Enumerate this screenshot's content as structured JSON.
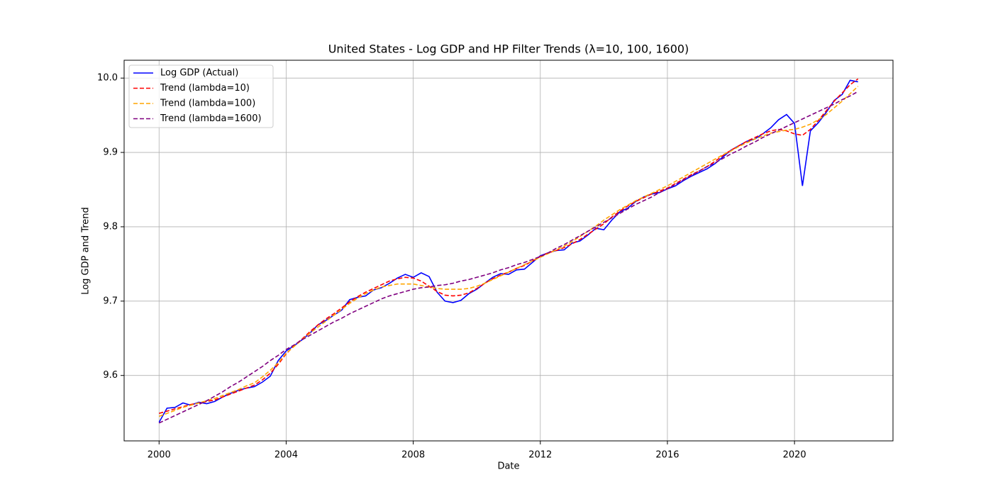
{
  "chart_data": {
    "type": "line",
    "title": "United States - Log GDP and HP Filter Trends (λ=10, 100, 1600)",
    "xlabel": "Date",
    "ylabel": "Log GDP and Trend",
    "x": [
      2000,
      2000.25,
      2000.5,
      2000.75,
      2001,
      2001.25,
      2001.5,
      2001.75,
      2002,
      2002.25,
      2002.5,
      2002.75,
      2003,
      2003.25,
      2003.5,
      2003.75,
      2004,
      2004.25,
      2004.5,
      2004.75,
      2005,
      2005.25,
      2005.5,
      2005.75,
      2006,
      2006.25,
      2006.5,
      2006.75,
      2007,
      2007.25,
      2007.5,
      2007.75,
      2008,
      2008.25,
      2008.5,
      2008.75,
      2009,
      2009.25,
      2009.5,
      2009.75,
      2010,
      2010.25,
      2010.5,
      2010.75,
      2011,
      2011.25,
      2011.5,
      2011.75,
      2012,
      2012.25,
      2012.5,
      2012.75,
      2013,
      2013.25,
      2013.5,
      2013.75,
      2014,
      2014.25,
      2014.5,
      2014.75,
      2015,
      2015.25,
      2015.5,
      2015.75,
      2016,
      2016.25,
      2016.5,
      2016.75,
      2017,
      2017.25,
      2017.5,
      2017.75,
      2018,
      2018.25,
      2018.5,
      2018.75,
      2019,
      2019.25,
      2019.5,
      2019.75,
      2020,
      2020.25,
      2020.5,
      2020.75,
      2021,
      2021.25,
      2021.5,
      2021.75,
      2022
    ],
    "series": [
      {
        "name": "Log GDP (Actual)",
        "color": "#0000ff",
        "dash": false,
        "values": [
          9.537,
          9.556,
          9.557,
          9.563,
          9.56,
          9.564,
          9.562,
          9.565,
          9.571,
          9.576,
          9.58,
          9.583,
          9.585,
          9.591,
          9.599,
          9.62,
          9.633,
          9.64,
          9.648,
          9.657,
          9.668,
          9.674,
          9.681,
          9.688,
          9.702,
          9.705,
          9.707,
          9.715,
          9.718,
          9.724,
          9.731,
          9.736,
          9.732,
          9.738,
          9.733,
          9.712,
          9.7,
          9.698,
          9.701,
          9.71,
          9.716,
          9.724,
          9.732,
          9.737,
          9.736,
          9.742,
          9.743,
          9.752,
          9.761,
          9.765,
          9.768,
          9.769,
          9.778,
          9.781,
          9.789,
          9.798,
          9.796,
          9.809,
          9.82,
          9.825,
          9.834,
          9.84,
          9.844,
          9.846,
          9.851,
          9.855,
          9.862,
          9.868,
          9.873,
          9.878,
          9.885,
          9.894,
          9.903,
          9.909,
          9.915,
          9.918,
          9.925,
          9.933,
          9.944,
          9.951,
          9.939,
          9.855,
          9.929,
          9.94,
          9.954,
          9.97,
          9.978,
          9.997,
          9.995
        ]
      },
      {
        "name": "Trend (lambda=10)",
        "color": "#ff0000",
        "dash": true,
        "values": [
          9.549,
          9.552,
          9.555,
          9.558,
          9.561,
          9.563,
          9.565,
          9.567,
          9.571,
          9.575,
          9.579,
          9.583,
          9.587,
          9.594,
          9.603,
          9.615,
          9.629,
          9.64,
          9.649,
          9.659,
          9.668,
          9.676,
          9.683,
          9.691,
          9.699,
          9.706,
          9.712,
          9.717,
          9.722,
          9.727,
          9.73,
          9.732,
          9.731,
          9.727,
          9.72,
          9.713,
          9.708,
          9.707,
          9.708,
          9.711,
          9.717,
          9.724,
          9.73,
          9.735,
          9.739,
          9.744,
          9.748,
          9.754,
          9.76,
          9.765,
          9.768,
          9.772,
          9.777,
          9.783,
          9.79,
          9.797,
          9.804,
          9.813,
          9.821,
          9.828,
          9.834,
          9.839,
          9.844,
          9.848,
          9.852,
          9.858,
          9.864,
          9.87,
          9.875,
          9.881,
          9.888,
          9.896,
          9.903,
          9.909,
          9.915,
          9.92,
          9.925,
          9.929,
          9.931,
          9.929,
          9.925,
          9.923,
          9.931,
          9.943,
          9.956,
          9.969,
          9.98,
          9.991,
          9.999
        ]
      },
      {
        "name": "Trend (lambda=100)",
        "color": "#ffa500",
        "dash": true,
        "values": [
          9.545,
          9.549,
          9.553,
          9.557,
          9.56,
          9.563,
          9.566,
          9.569,
          9.573,
          9.577,
          9.581,
          9.586,
          9.59,
          9.598,
          9.607,
          9.617,
          9.63,
          9.639,
          9.648,
          9.657,
          9.665,
          9.673,
          9.681,
          9.689,
          9.697,
          9.704,
          9.71,
          9.715,
          9.719,
          9.721,
          9.723,
          9.723,
          9.723,
          9.721,
          9.719,
          9.717,
          9.716,
          9.716,
          9.716,
          9.717,
          9.72,
          9.724,
          9.729,
          9.734,
          9.739,
          9.744,
          9.749,
          9.754,
          9.759,
          9.764,
          9.769,
          9.774,
          9.78,
          9.787,
          9.794,
          9.801,
          9.809,
          9.816,
          9.823,
          9.829,
          9.835,
          9.84,
          9.845,
          9.85,
          9.855,
          9.861,
          9.867,
          9.873,
          9.879,
          9.885,
          9.891,
          9.897,
          9.902,
          9.908,
          9.913,
          9.918,
          9.922,
          9.926,
          9.928,
          9.93,
          9.931,
          9.934,
          9.938,
          9.944,
          9.951,
          9.96,
          9.969,
          9.979,
          9.989
        ]
      },
      {
        "name": "Trend (lambda=1600)",
        "color": "#800080",
        "dash": true,
        "values": [
          9.536,
          9.541,
          9.546,
          9.551,
          9.556,
          9.561,
          9.566,
          9.572,
          9.578,
          9.585,
          9.591,
          9.598,
          9.605,
          9.612,
          9.62,
          9.627,
          9.635,
          9.641,
          9.648,
          9.654,
          9.66,
          9.666,
          9.672,
          9.677,
          9.683,
          9.688,
          9.693,
          9.698,
          9.703,
          9.707,
          9.71,
          9.713,
          9.716,
          9.718,
          9.719,
          9.721,
          9.722,
          9.724,
          9.727,
          9.729,
          9.732,
          9.735,
          9.738,
          9.742,
          9.745,
          9.749,
          9.752,
          9.756,
          9.76,
          9.765,
          9.771,
          9.776,
          9.782,
          9.788,
          9.794,
          9.8,
          9.806,
          9.812,
          9.818,
          9.824,
          9.83,
          9.835,
          9.84,
          9.846,
          9.851,
          9.857,
          9.863,
          9.869,
          9.875,
          9.881,
          9.886,
          9.892,
          9.898,
          9.903,
          9.909,
          9.914,
          9.92,
          9.925,
          9.93,
          9.935,
          9.94,
          9.945,
          9.95,
          9.955,
          9.96,
          9.965,
          9.971,
          9.976,
          9.982
        ]
      }
    ],
    "xlim": [
      1998.9,
      2023.1
    ],
    "xticks": [
      2000,
      2004,
      2008,
      2012,
      2016,
      2020
    ],
    "ylim": [
      9.512,
      10.024
    ],
    "yticks": [
      9.6,
      9.7,
      9.8,
      9.9,
      {
        "value": 10,
        "label": "10.0"
      }
    ],
    "grid": true,
    "legend": "upper left"
  }
}
